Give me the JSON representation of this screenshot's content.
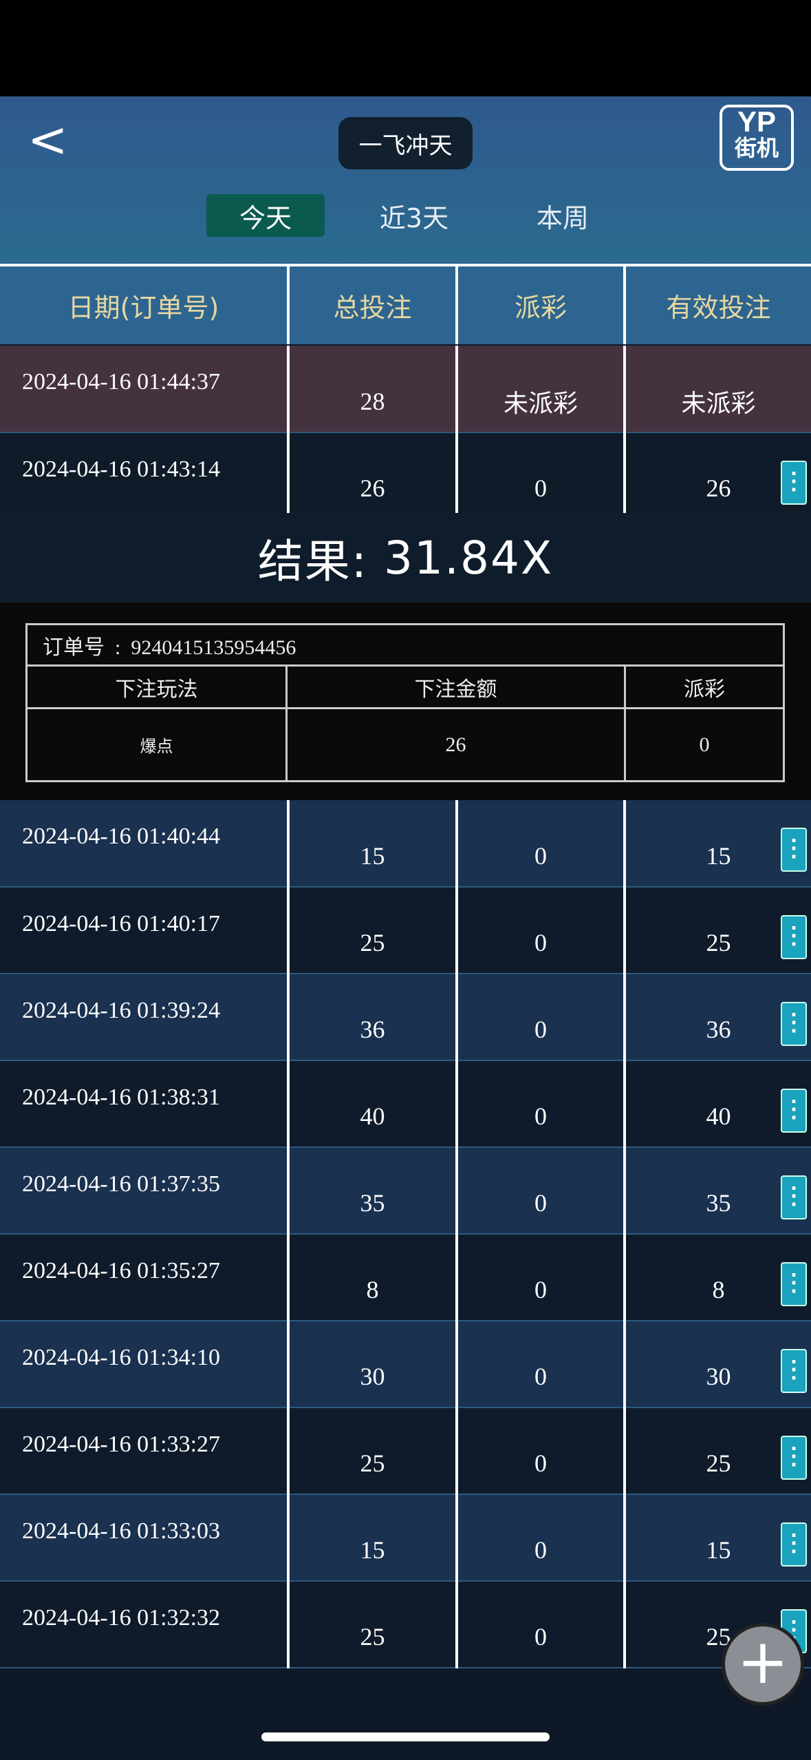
{
  "header": {
    "back_label": "<",
    "title": "一飞冲天",
    "logo_top": "YP",
    "logo_bottom": "街机"
  },
  "tabs": [
    {
      "label": "今天",
      "active": true
    },
    {
      "label": "近3天",
      "active": false
    },
    {
      "label": "本周",
      "active": false
    }
  ],
  "columns": [
    "日期(订单号)",
    "总投注",
    "派彩",
    "有效投注"
  ],
  "rows_top": [
    {
      "date": "2024-04-16 01:44:37",
      "bet": "28",
      "payout": "未派彩",
      "valid": "未派彩"
    },
    {
      "date": "2024-04-16 01:43:14",
      "bet": "26",
      "payout": "0",
      "valid": "26"
    }
  ],
  "result": {
    "label": "结果:",
    "value": "31.84X"
  },
  "detail": {
    "order_label": "订单号",
    "order_sep": ":",
    "order_no": "9240415135954456",
    "headers": [
      "下注玩法",
      "下注金额",
      "派彩"
    ],
    "play": "爆点",
    "amount": "26",
    "payout": "0"
  },
  "rows": [
    {
      "date": "2024-04-16 01:40:44",
      "bet": "15",
      "payout": "0",
      "valid": "15"
    },
    {
      "date": "2024-04-16 01:40:17",
      "bet": "25",
      "payout": "0",
      "valid": "25"
    },
    {
      "date": "2024-04-16 01:39:24",
      "bet": "36",
      "payout": "0",
      "valid": "36"
    },
    {
      "date": "2024-04-16 01:38:31",
      "bet": "40",
      "payout": "0",
      "valid": "40"
    },
    {
      "date": "2024-04-16 01:37:35",
      "bet": "35",
      "payout": "0",
      "valid": "35"
    },
    {
      "date": "2024-04-16 01:35:27",
      "bet": "8",
      "payout": "0",
      "valid": "8"
    },
    {
      "date": "2024-04-16 01:34:10",
      "bet": "30",
      "payout": "0",
      "valid": "30"
    },
    {
      "date": "2024-04-16 01:33:27",
      "bet": "25",
      "payout": "0",
      "valid": "25"
    },
    {
      "date": "2024-04-16 01:33:03",
      "bet": "15",
      "payout": "0",
      "valid": "15"
    },
    {
      "date": "2024-04-16 01:32:32",
      "bet": "25",
      "payout": "0",
      "valid": "25"
    }
  ],
  "fab_label": "+",
  "kebab_icon": "⋮",
  "colors": {
    "pending_row": "#45323f",
    "header_row": "#2e6590",
    "active_tab": "#0b5a50",
    "kebab": "#1aa3bd"
  }
}
